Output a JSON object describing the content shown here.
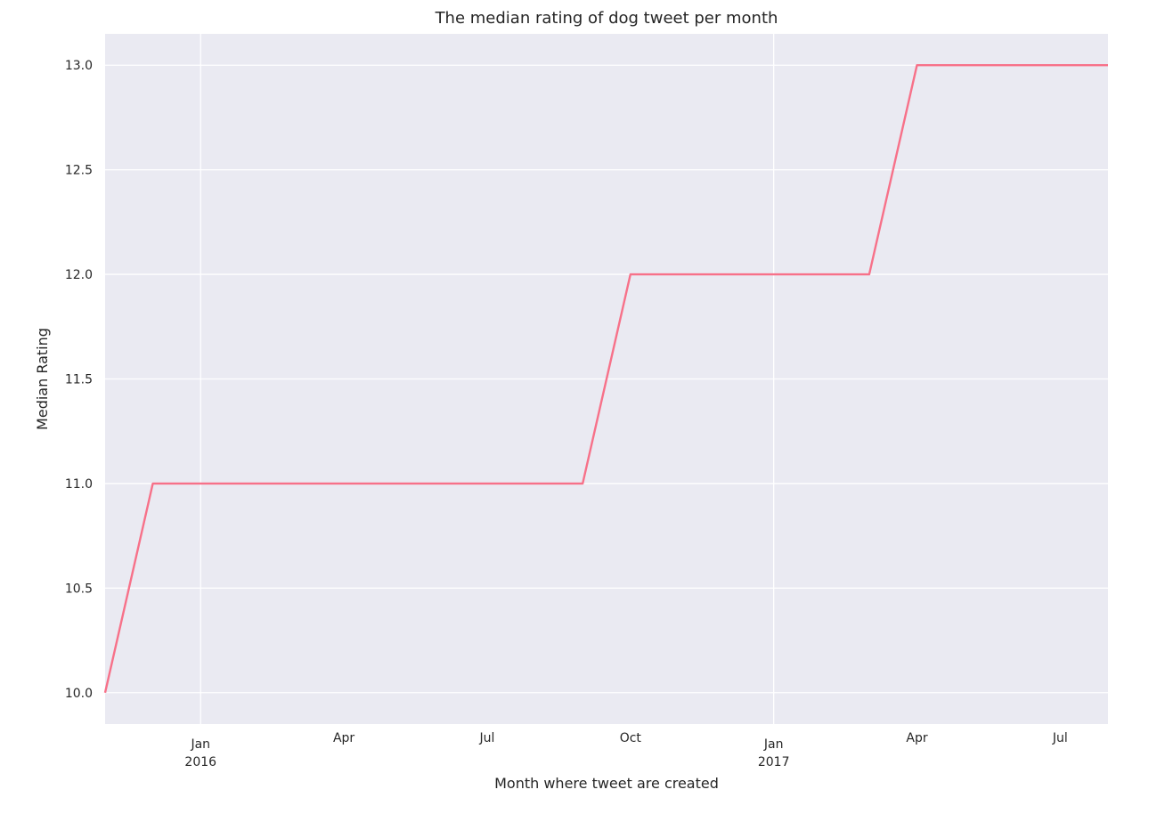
{
  "chart_data": {
    "type": "line",
    "title": "The median rating of dog tweet per month",
    "xlabel": "Month where tweet are created",
    "ylabel": "Median Rating",
    "ylim": [
      9.85,
      13.15
    ],
    "xlim": [
      "2015-11",
      "2017-08"
    ],
    "grid": true,
    "background": "#eaeaf2",
    "grid_color": "#ffffff",
    "yticks": [
      {
        "value": 10.0,
        "label": "10.0"
      },
      {
        "value": 10.5,
        "label": "10.5"
      },
      {
        "value": 11.0,
        "label": "11.0"
      },
      {
        "value": 11.5,
        "label": "11.5"
      },
      {
        "value": 12.0,
        "label": "12.0"
      },
      {
        "value": 12.5,
        "label": "12.5"
      },
      {
        "value": 13.0,
        "label": "13.0"
      }
    ],
    "xticks": [
      {
        "month": 2,
        "label": "Jan",
        "sublabel": "2016",
        "major": true
      },
      {
        "month": 5,
        "label": "Apr",
        "sublabel": "",
        "major": false
      },
      {
        "month": 8,
        "label": "Jul",
        "sublabel": "",
        "major": false
      },
      {
        "month": 11,
        "label": "Oct",
        "sublabel": "",
        "major": false
      },
      {
        "month": 14,
        "label": "Jan",
        "sublabel": "2017",
        "major": true
      },
      {
        "month": 17,
        "label": "Apr",
        "sublabel": "",
        "major": false
      },
      {
        "month": 20,
        "label": "Jul",
        "sublabel": "",
        "major": false
      }
    ],
    "series": [
      {
        "name": "median rating",
        "color": "#f77189",
        "x": [
          "2015-11",
          "2015-12",
          "2016-01",
          "2016-02",
          "2016-03",
          "2016-04",
          "2016-05",
          "2016-06",
          "2016-07",
          "2016-08",
          "2016-09",
          "2016-10",
          "2016-11",
          "2016-12",
          "2017-01",
          "2017-02",
          "2017-03",
          "2017-04",
          "2017-05",
          "2017-06",
          "2017-07",
          "2017-08"
        ],
        "values": [
          10,
          11,
          11,
          11,
          11,
          11,
          11,
          11,
          11,
          11,
          11,
          12,
          12,
          12,
          12,
          12,
          12,
          13,
          13,
          13,
          13,
          13
        ]
      }
    ]
  }
}
